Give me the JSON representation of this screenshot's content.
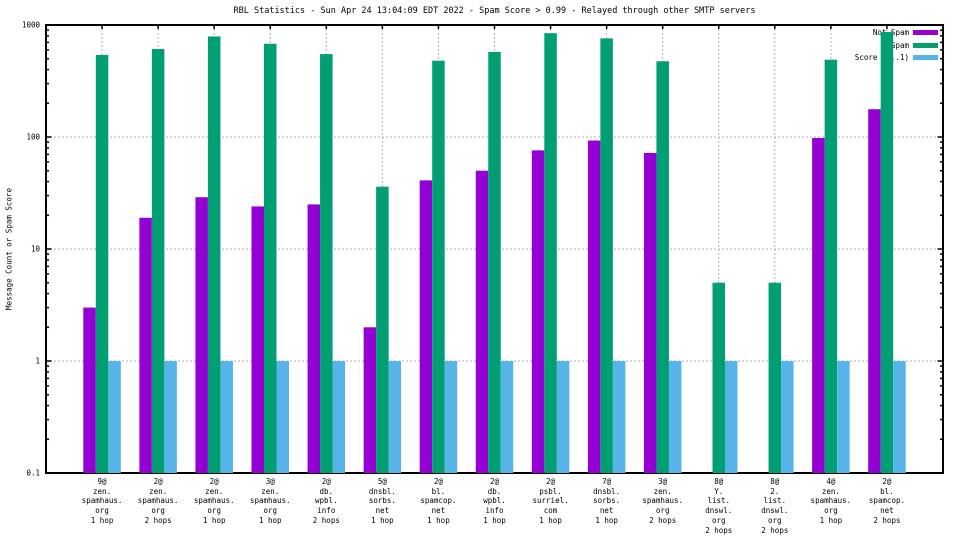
{
  "title": "RBL Statistics - Sun Apr 24 13:04:09 EDT 2022 - Spam Score > 0.99 - Relayed through other SMTP servers",
  "chart_data": {
    "type": "bar",
    "title": "RBL Statistics - Sun Apr 24 13:04:09 EDT 2022 - Spam Score > 0.99 - Relayed through other SMTP servers",
    "ylabel": "Message Count or Spam Score",
    "xlabel": "",
    "y_scale": "log",
    "ylim": [
      0.1,
      1000
    ],
    "yticks": [
      1000,
      100,
      10,
      1,
      0.1
    ],
    "grid": "dashed-gray-horizontal-and-vertical",
    "legend_position": "top-right-inside",
    "border_color": "#000000",
    "grid_color": "#b0b0b0",
    "categories": [
      [
        "9@",
        "zen.",
        "spamhaus.",
        "org",
        "1 hop"
      ],
      [
        "2@",
        "zen.",
        "spamhaus.",
        "org",
        "2 hops"
      ],
      [
        "2@",
        "zen.",
        "spamhaus.",
        "org",
        "1 hop"
      ],
      [
        "3@",
        "zen.",
        "spamhaus.",
        "org",
        "1 hop"
      ],
      [
        "2@",
        "db.",
        "wpbl.",
        "info",
        "2 hops"
      ],
      [
        "5@",
        "dnsbl.",
        "sorbs.",
        "net",
        "1 hop"
      ],
      [
        "2@",
        "bl.",
        "spamcop.",
        "net",
        "1 hop"
      ],
      [
        "2@",
        "db.",
        "wpbl.",
        "info",
        "1 hop"
      ],
      [
        "2@",
        "psbl.",
        "surriel.",
        "com",
        "1 hop"
      ],
      [
        "7@",
        "dnsbl.",
        "sorbs.",
        "net",
        "1 hop"
      ],
      [
        "3@",
        "zen.",
        "spamhaus.",
        "org",
        "2 hops"
      ],
      [
        "8@",
        "Y.",
        "list.",
        "dnswl.",
        "org",
        "2 hops"
      ],
      [
        "8@",
        "2.",
        "list.",
        "dnswl.",
        "org",
        "2 hops"
      ],
      [
        "4@",
        "zen.",
        "spamhaus.",
        "org",
        "1 hop"
      ],
      [
        "2@",
        "bl.",
        "spamcop.",
        "net",
        "2 hops"
      ]
    ],
    "series": [
      {
        "name": "Not Spam",
        "color": "#9400d3",
        "values": [
          3,
          19,
          29,
          24,
          25,
          2,
          41,
          50,
          76,
          93,
          72,
          0,
          0,
          98,
          177
        ]
      },
      {
        "name": "Spam",
        "color": "#009e73",
        "values": [
          540,
          610,
          790,
          680,
          550,
          36,
          480,
          575,
          845,
          760,
          475,
          5,
          5,
          490,
          865
        ]
      },
      {
        "name": "Score (0..1)",
        "color": "#56b4e9",
        "values": [
          1,
          1,
          1,
          1,
          1,
          1,
          1,
          1,
          1,
          1,
          1,
          1,
          1,
          1,
          1
        ]
      }
    ]
  }
}
